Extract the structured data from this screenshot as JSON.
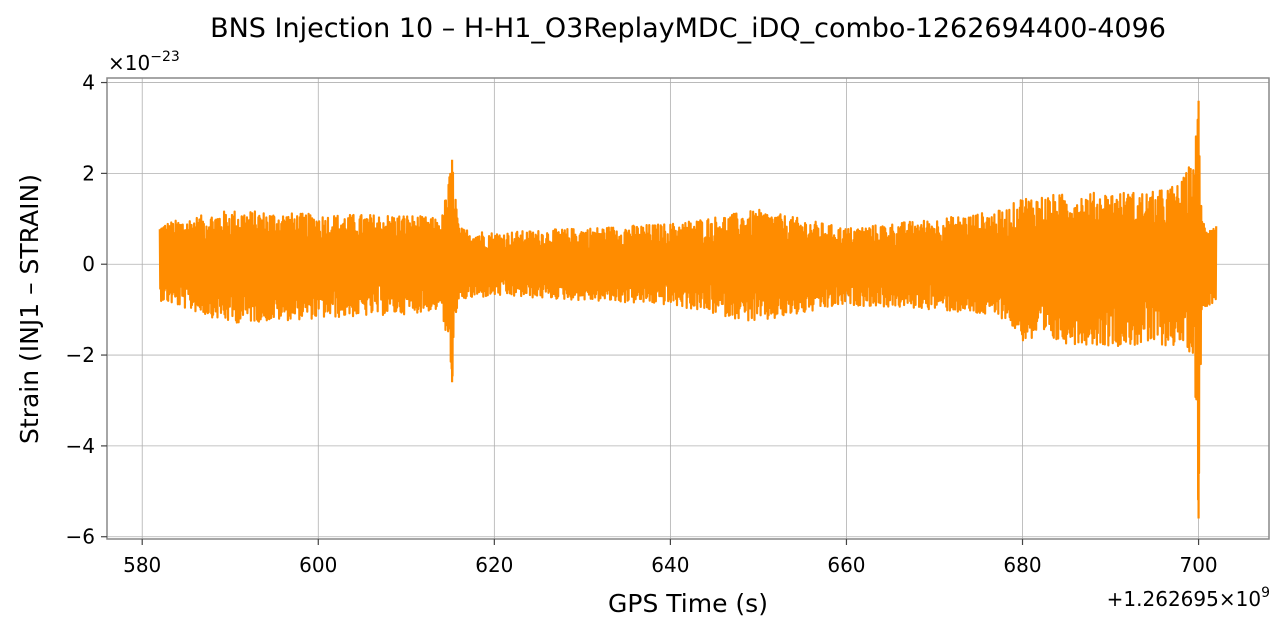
{
  "chart_data": {
    "type": "line",
    "title": "BNS Injection 10 – H-H1_O3ReplayMDC_iDQ_combo-1262694400-4096",
    "xlabel": "GPS Time (s)",
    "ylabel": "Strain (INJ1 – STRAIN)",
    "x_offset_text": "+1.262695×10^9",
    "y_scale_text": "×10^−23",
    "xlim": [
      576,
      708
    ],
    "ylim": [
      -6.05,
      4.1
    ],
    "xticks": [
      580,
      600,
      620,
      640,
      660,
      680,
      700
    ],
    "xtick_labels": [
      "580",
      "600",
      "620",
      "640",
      "660",
      "680",
      "700"
    ],
    "yticks": [
      -6,
      -4,
      -2,
      0,
      2,
      4
    ],
    "ytick_labels": [
      "−6",
      "−4",
      "−2",
      "0",
      "2",
      "4"
    ],
    "grid": true,
    "line_color": "#ff8c00",
    "series": [
      {
        "name": "",
        "x_range": [
          582,
          702
        ],
        "envelope": {
          "x": [
            582,
            590,
            600,
            610,
            614,
            615.2,
            616,
            620,
            630,
            640,
            650,
            660,
            670,
            678,
            680,
            690,
            695,
            698,
            699.5,
            700,
            700.4,
            702
          ],
          "y_upper": [
            0.9,
            1.2,
            1.1,
            1.1,
            1.0,
            2.3,
            0.8,
            0.7,
            0.8,
            0.9,
            1.2,
            0.8,
            1.0,
            1.2,
            1.5,
            1.6,
            1.6,
            1.8,
            2.4,
            3.6,
            1.0,
            0.9
          ],
          "y_lower": [
            -0.8,
            -1.3,
            -1.2,
            -1.1,
            -1.0,
            -2.6,
            -0.8,
            -0.7,
            -0.8,
            -0.9,
            -1.3,
            -0.9,
            -1.0,
            -1.2,
            -1.7,
            -1.8,
            -1.8,
            -1.8,
            -2.0,
            -5.6,
            -1.0,
            -0.8
          ]
        }
      }
    ]
  }
}
